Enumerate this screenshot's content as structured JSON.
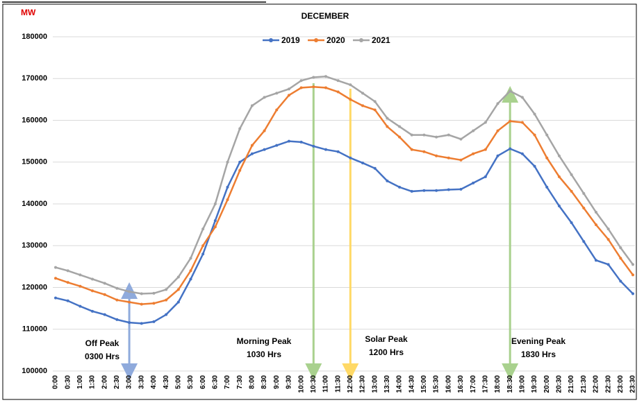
{
  "chart_data": {
    "type": "line",
    "title": "DECEMBER",
    "y_unit": "MW",
    "categories": [
      "0:00",
      "0:30",
      "1:00",
      "1:30",
      "2:00",
      "2:30",
      "3:00",
      "3:30",
      "4:00",
      "4:30",
      "5:00",
      "5:30",
      "6:00",
      "6:30",
      "7:00",
      "7:30",
      "8:00",
      "8:30",
      "9:00",
      "9:30",
      "10:00",
      "10:30",
      "11:00",
      "11:30",
      "12:00",
      "12:30",
      "13:00",
      "13:30",
      "14:00",
      "14:30",
      "15:00",
      "15:30",
      "16:00",
      "16:30",
      "17:00",
      "17:30",
      "18:00",
      "18:30",
      "19:00",
      "19:30",
      "20:00",
      "20:30",
      "21:00",
      "21:30",
      "22:00",
      "22:30",
      "23:00",
      "23:30"
    ],
    "series": [
      {
        "name": "2019",
        "color": "#4472c4",
        "values": [
          117500,
          116800,
          115500,
          114300,
          113500,
          112300,
          111600,
          111400,
          111800,
          113500,
          116500,
          122000,
          128000,
          136000,
          144000,
          150000,
          152000,
          153000,
          154000,
          155000,
          154800,
          153800,
          153000,
          152500,
          151000,
          149800,
          148500,
          145500,
          144000,
          143000,
          143200,
          143200,
          143400,
          143500,
          145000,
          146500,
          151500,
          153200,
          152000,
          149000,
          144000,
          139500,
          135500,
          131000,
          126500,
          125500,
          121500,
          118500
        ]
      },
      {
        "name": "2020",
        "color": "#ed7d31",
        "values": [
          122200,
          121200,
          120300,
          119200,
          118300,
          117000,
          116500,
          116000,
          116200,
          117000,
          119500,
          124000,
          130000,
          134500,
          141000,
          148000,
          154000,
          157500,
          162500,
          166000,
          167800,
          168000,
          167800,
          166800,
          165000,
          163500,
          162500,
          158500,
          156000,
          153000,
          152500,
          151500,
          151000,
          150500,
          152000,
          153000,
          157500,
          159800,
          159500,
          156500,
          151000,
          146500,
          143000,
          139000,
          135000,
          131500,
          127000,
          123000
        ]
      },
      {
        "name": "2021",
        "color": "#a5a5a5",
        "values": [
          124800,
          124000,
          123000,
          122000,
          121000,
          119800,
          119000,
          118500,
          118600,
          119500,
          122500,
          127000,
          134000,
          140000,
          150000,
          158000,
          163500,
          165500,
          166500,
          167500,
          169500,
          170300,
          170500,
          169500,
          168500,
          166500,
          164500,
          160500,
          158500,
          156500,
          156500,
          156000,
          156500,
          155500,
          157500,
          159500,
          164000,
          167000,
          165500,
          161500,
          156500,
          151500,
          147000,
          142500,
          138000,
          134000,
          129500,
          125500
        ]
      }
    ],
    "ylim": [
      100000,
      180000
    ],
    "yticks": [
      100000,
      110000,
      120000,
      130000,
      140000,
      150000,
      160000,
      170000,
      180000
    ],
    "grid": true,
    "annotations": [
      [
        "Off Peak",
        "0300 Hrs"
      ],
      [
        "Morning Peak",
        "1030 Hrs"
      ],
      [
        "Solar Peak",
        "1200 Hrs"
      ],
      [
        "Evening Peak",
        "1830 Hrs"
      ]
    ]
  }
}
